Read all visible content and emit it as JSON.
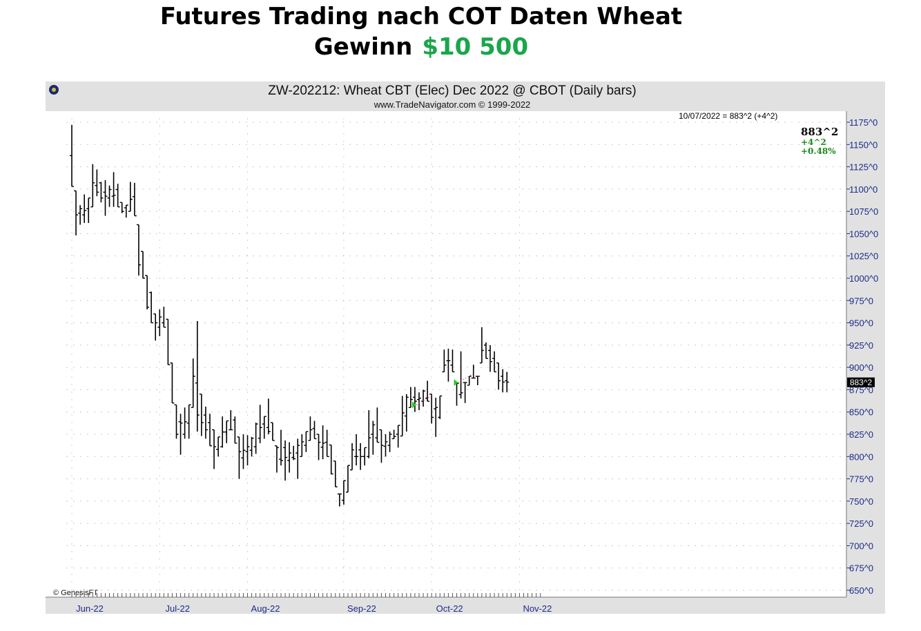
{
  "headline": {
    "line1": "Futures Trading nach COT Daten Wheat",
    "line2_label": "Gewinn",
    "line2_value": "$10 500"
  },
  "chart_data": {
    "type": "ohlc",
    "title": "ZW-202212:  Wheat CBT (Elec) Dec 2022 @ CBOT  (Daily bars)",
    "subtitle": "www.TradeNavigator.com © 1999-2022",
    "copyright": "© GenesisFT",
    "last_bar_info": "10/07/2022 = 883^2 (+4^2)",
    "last_price": "883^2",
    "last_change": "+4^2",
    "last_change_pct": "+0.48%",
    "price_marker": "883^2",
    "ylim": [
      645,
      1180
    ],
    "y_ticks": [
      650,
      675,
      700,
      725,
      750,
      775,
      800,
      825,
      850,
      875,
      900,
      925,
      950,
      975,
      1000,
      1025,
      1050,
      1075,
      1100,
      1125,
      1150,
      1175
    ],
    "y_tick_labels": [
      "650^0",
      "675^0",
      "700^0",
      "725^0",
      "750^0",
      "775^0",
      "800^0",
      "825^0",
      "850^0",
      "875^0",
      "900^0",
      "925^0",
      "950^0",
      "975^0",
      "1000^0",
      "1025^0",
      "1050^0",
      "1075^0",
      "1100^0",
      "1125^0",
      "1150^0",
      "1175^0"
    ],
    "x_months": [
      {
        "label": "Jun-22",
        "index": 0
      },
      {
        "label": "Jul-22",
        "index": 21
      },
      {
        "label": "Aug-22",
        "index": 42
      },
      {
        "label": "Sep-22",
        "index": 65
      },
      {
        "label": "Oct-22",
        "index": 86
      },
      {
        "label": "Nov-22",
        "index": 107
      }
    ],
    "bars": [
      [
        1172,
        1103
      ],
      [
        1098,
        1048
      ],
      [
        1082,
        1060
      ],
      [
        1094,
        1062
      ],
      [
        1090,
        1062
      ],
      [
        1128,
        1080
      ],
      [
        1122,
        1092
      ],
      [
        1108,
        1085
      ],
      [
        1110,
        1070
      ],
      [
        1104,
        1080
      ],
      [
        1119,
        1080
      ],
      [
        1106,
        1080
      ],
      [
        1085,
        1073
      ],
      [
        1082,
        1068
      ],
      [
        1108,
        1075
      ],
      [
        1107,
        1070
      ],
      [
        1060,
        1003
      ],
      [
        1030,
        1000
      ],
      [
        1003,
        965
      ],
      [
        985,
        950
      ],
      [
        960,
        930
      ],
      [
        965,
        935
      ],
      [
        968,
        945
      ],
      [
        954,
        903
      ],
      [
        905,
        860
      ],
      [
        858,
        820
      ],
      [
        848,
        802
      ],
      [
        855,
        820
      ],
      [
        858,
        820
      ],
      [
        910,
        855
      ],
      [
        952,
        828
      ],
      [
        870,
        823
      ],
      [
        856,
        820
      ],
      [
        848,
        812
      ],
      [
        830,
        786
      ],
      [
        822,
        800
      ],
      [
        845,
        810
      ],
      [
        840,
        815
      ],
      [
        852,
        830
      ],
      [
        845,
        815
      ],
      [
        822,
        775
      ],
      [
        825,
        786
      ],
      [
        824,
        790
      ],
      [
        822,
        800
      ],
      [
        838,
        803
      ],
      [
        858,
        815
      ],
      [
        845,
        820
      ],
      [
        865,
        825
      ],
      [
        838,
        818
      ],
      [
        812,
        782
      ],
      [
        830,
        790
      ],
      [
        818,
        773
      ],
      [
        816,
        782
      ],
      [
        812,
        796
      ],
      [
        820,
        775
      ],
      [
        825,
        800
      ],
      [
        828,
        805
      ],
      [
        845,
        818
      ],
      [
        840,
        820
      ],
      [
        825,
        796
      ],
      [
        835,
        797
      ],
      [
        830,
        800
      ],
      [
        813,
        780
      ],
      [
        795,
        766
      ],
      [
        758,
        744
      ],
      [
        773,
        746
      ],
      [
        790,
        760
      ],
      [
        815,
        785
      ],
      [
        825,
        790
      ],
      [
        815,
        785
      ],
      [
        810,
        790
      ],
      [
        852,
        798
      ],
      [
        840,
        802
      ],
      [
        855,
        816
      ],
      [
        830,
        793
      ],
      [
        825,
        800
      ],
      [
        828,
        805
      ],
      [
        830,
        820
      ],
      [
        835,
        810
      ],
      [
        868,
        823
      ],
      [
        870,
        828
      ],
      [
        878,
        855
      ],
      [
        878,
        850
      ],
      [
        872,
        852
      ],
      [
        875,
        856
      ],
      [
        885,
        862
      ],
      [
        870,
        837
      ],
      [
        866,
        822
      ],
      [
        868,
        842
      ],
      [
        920,
        895
      ],
      [
        921,
        884
      ],
      [
        920,
        895
      ],
      [
        882,
        857
      ],
      [
        918,
        865
      ],
      [
        883,
        860
      ],
      [
        890,
        880
      ],
      [
        903,
        888
      ],
      [
        890,
        880
      ],
      [
        945,
        905
      ],
      [
        928,
        910
      ],
      [
        925,
        895
      ],
      [
        918,
        895
      ],
      [
        905,
        875
      ],
      [
        898,
        872
      ],
      [
        895,
        872
      ]
    ],
    "markers": [
      {
        "type": "triangle-right",
        "index": 82,
        "price": 858,
        "color": "#22cc22"
      },
      {
        "type": "triangle-right",
        "index": 92,
        "price": 883,
        "color": "#22cc22"
      }
    ]
  }
}
